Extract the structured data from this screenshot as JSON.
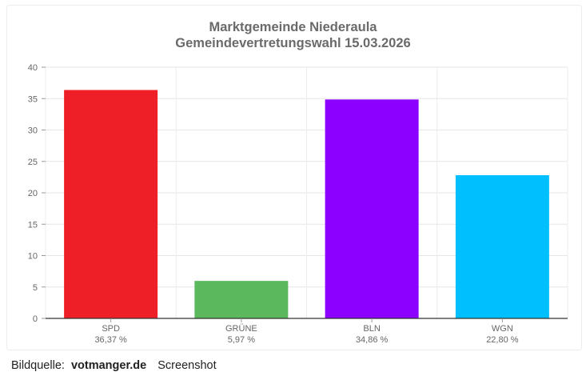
{
  "chart_data": {
    "type": "bar",
    "title": "Marktgemeinde Niederaula",
    "subtitle": "Gemeindevertretungswahl 15.03.2026",
    "categories": [
      "SPD",
      "GRÜNE",
      "BLN",
      "WGN"
    ],
    "values": [
      36.37,
      5.97,
      34.86,
      22.8
    ],
    "value_labels": [
      "36,37 %",
      "5,97 %",
      "34,86 %",
      "22,80 %"
    ],
    "colors": [
      "#ee1f26",
      "#5cb85c",
      "#8b00ff",
      "#00bfff"
    ],
    "ylim": [
      0,
      40
    ],
    "yticks": [
      0,
      5,
      10,
      15,
      20,
      25,
      30,
      35,
      40
    ],
    "grid": true,
    "legend": "none"
  },
  "caption": {
    "label": "Bildquelle:",
    "source": "votmanger.de",
    "kind": "Screenshot"
  }
}
